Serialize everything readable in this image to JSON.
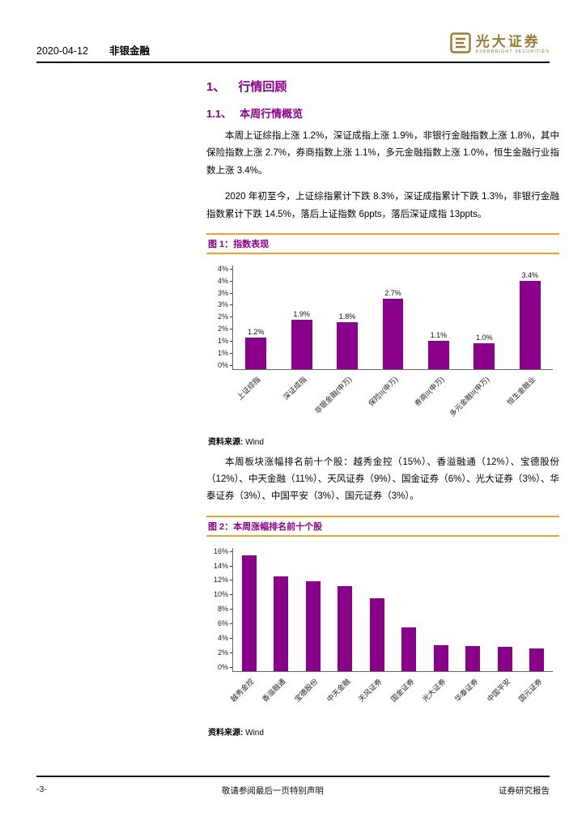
{
  "header": {
    "date": "2020-04-12",
    "category": "非银金融",
    "logo": {
      "cn": "光大证券",
      "en": "EVERBRIGHT SECURITIES"
    }
  },
  "section": {
    "h1_num": "1、",
    "h1_title": "行情回顾",
    "h2_num": "1.1、",
    "h2_title": "本周行情概览",
    "para1": "本周上证综指上涨 1.2%，深证成指上涨 1.9%，非银行金融指数上涨 1.8%，其中保险指数上涨 2.7%，券商指数上涨 1.1%，多元金融指数上涨 1.0%，恒生金融行业指数上涨 3.4%。",
    "para2": "2020 年初至今，上证综指累计下跌 8.3%，深证成指累计下跌 1.3%，非银行金融指数累计下跌 14.5%，落后上证指数 6ppts，落后深证成指 13ppts。",
    "para3": "本周板块涨幅排名前十个股：越秀金控（15%）、香溢融通（12%）、宝德股份（12%）、中天金融（11%）、天风证券（9%）、国金证券（6%）、光大证券（3%）、华泰证券（3%）、中国平安（3%）、国元证券（3%）。"
  },
  "chart_data": [
    {
      "type": "bar",
      "title": "图 1：指数表现",
      "categories": [
        "上证综指",
        "深证成指",
        "非银金融(申万)",
        "保险II(申万)",
        "券商II(申万)",
        "多元金融II(申万)",
        "恒生金融业"
      ],
      "values": [
        1.2,
        1.9,
        1.8,
        2.7,
        1.1,
        1.0,
        3.4
      ],
      "data_labels": [
        "1.2%",
        "1.9%",
        "1.8%",
        "2.7%",
        "1.1%",
        "1.0%",
        "3.4%"
      ],
      "ylim": [
        0,
        4
      ],
      "ytick_labels": [
        "0%",
        "1%",
        "1%",
        "2%",
        "2%",
        "3%",
        "3%",
        "4%",
        "4%"
      ],
      "grid": false,
      "legend": false,
      "bar_color": "#8B008B",
      "source_label": "资料来源:",
      "source_value": "Wind"
    },
    {
      "type": "bar",
      "title": "图 2：本周涨幅排名前十个股",
      "categories": [
        "越秀金控",
        "香溢融通",
        "宝德股份",
        "中天金融",
        "天风证券",
        "国金证券",
        "光大证券",
        "华泰证券",
        "中国平安",
        "国元证券"
      ],
      "values": [
        15.0,
        12.3,
        11.6,
        11.0,
        9.4,
        5.6,
        3.3,
        3.2,
        3.1,
        2.9
      ],
      "data_labels": null,
      "ylim": [
        0,
        16
      ],
      "ytick_labels": [
        "0%",
        "2%",
        "4%",
        "6%",
        "8%",
        "10%",
        "12%",
        "14%",
        "16%"
      ],
      "grid": false,
      "legend": false,
      "bar_color": "#8B008B",
      "source_label": "资料来源:",
      "source_value": "Wind"
    }
  ],
  "footer": {
    "left": "敬请参阅最后一页特别声明",
    "center": "-3-",
    "right": "证券研究报告"
  }
}
